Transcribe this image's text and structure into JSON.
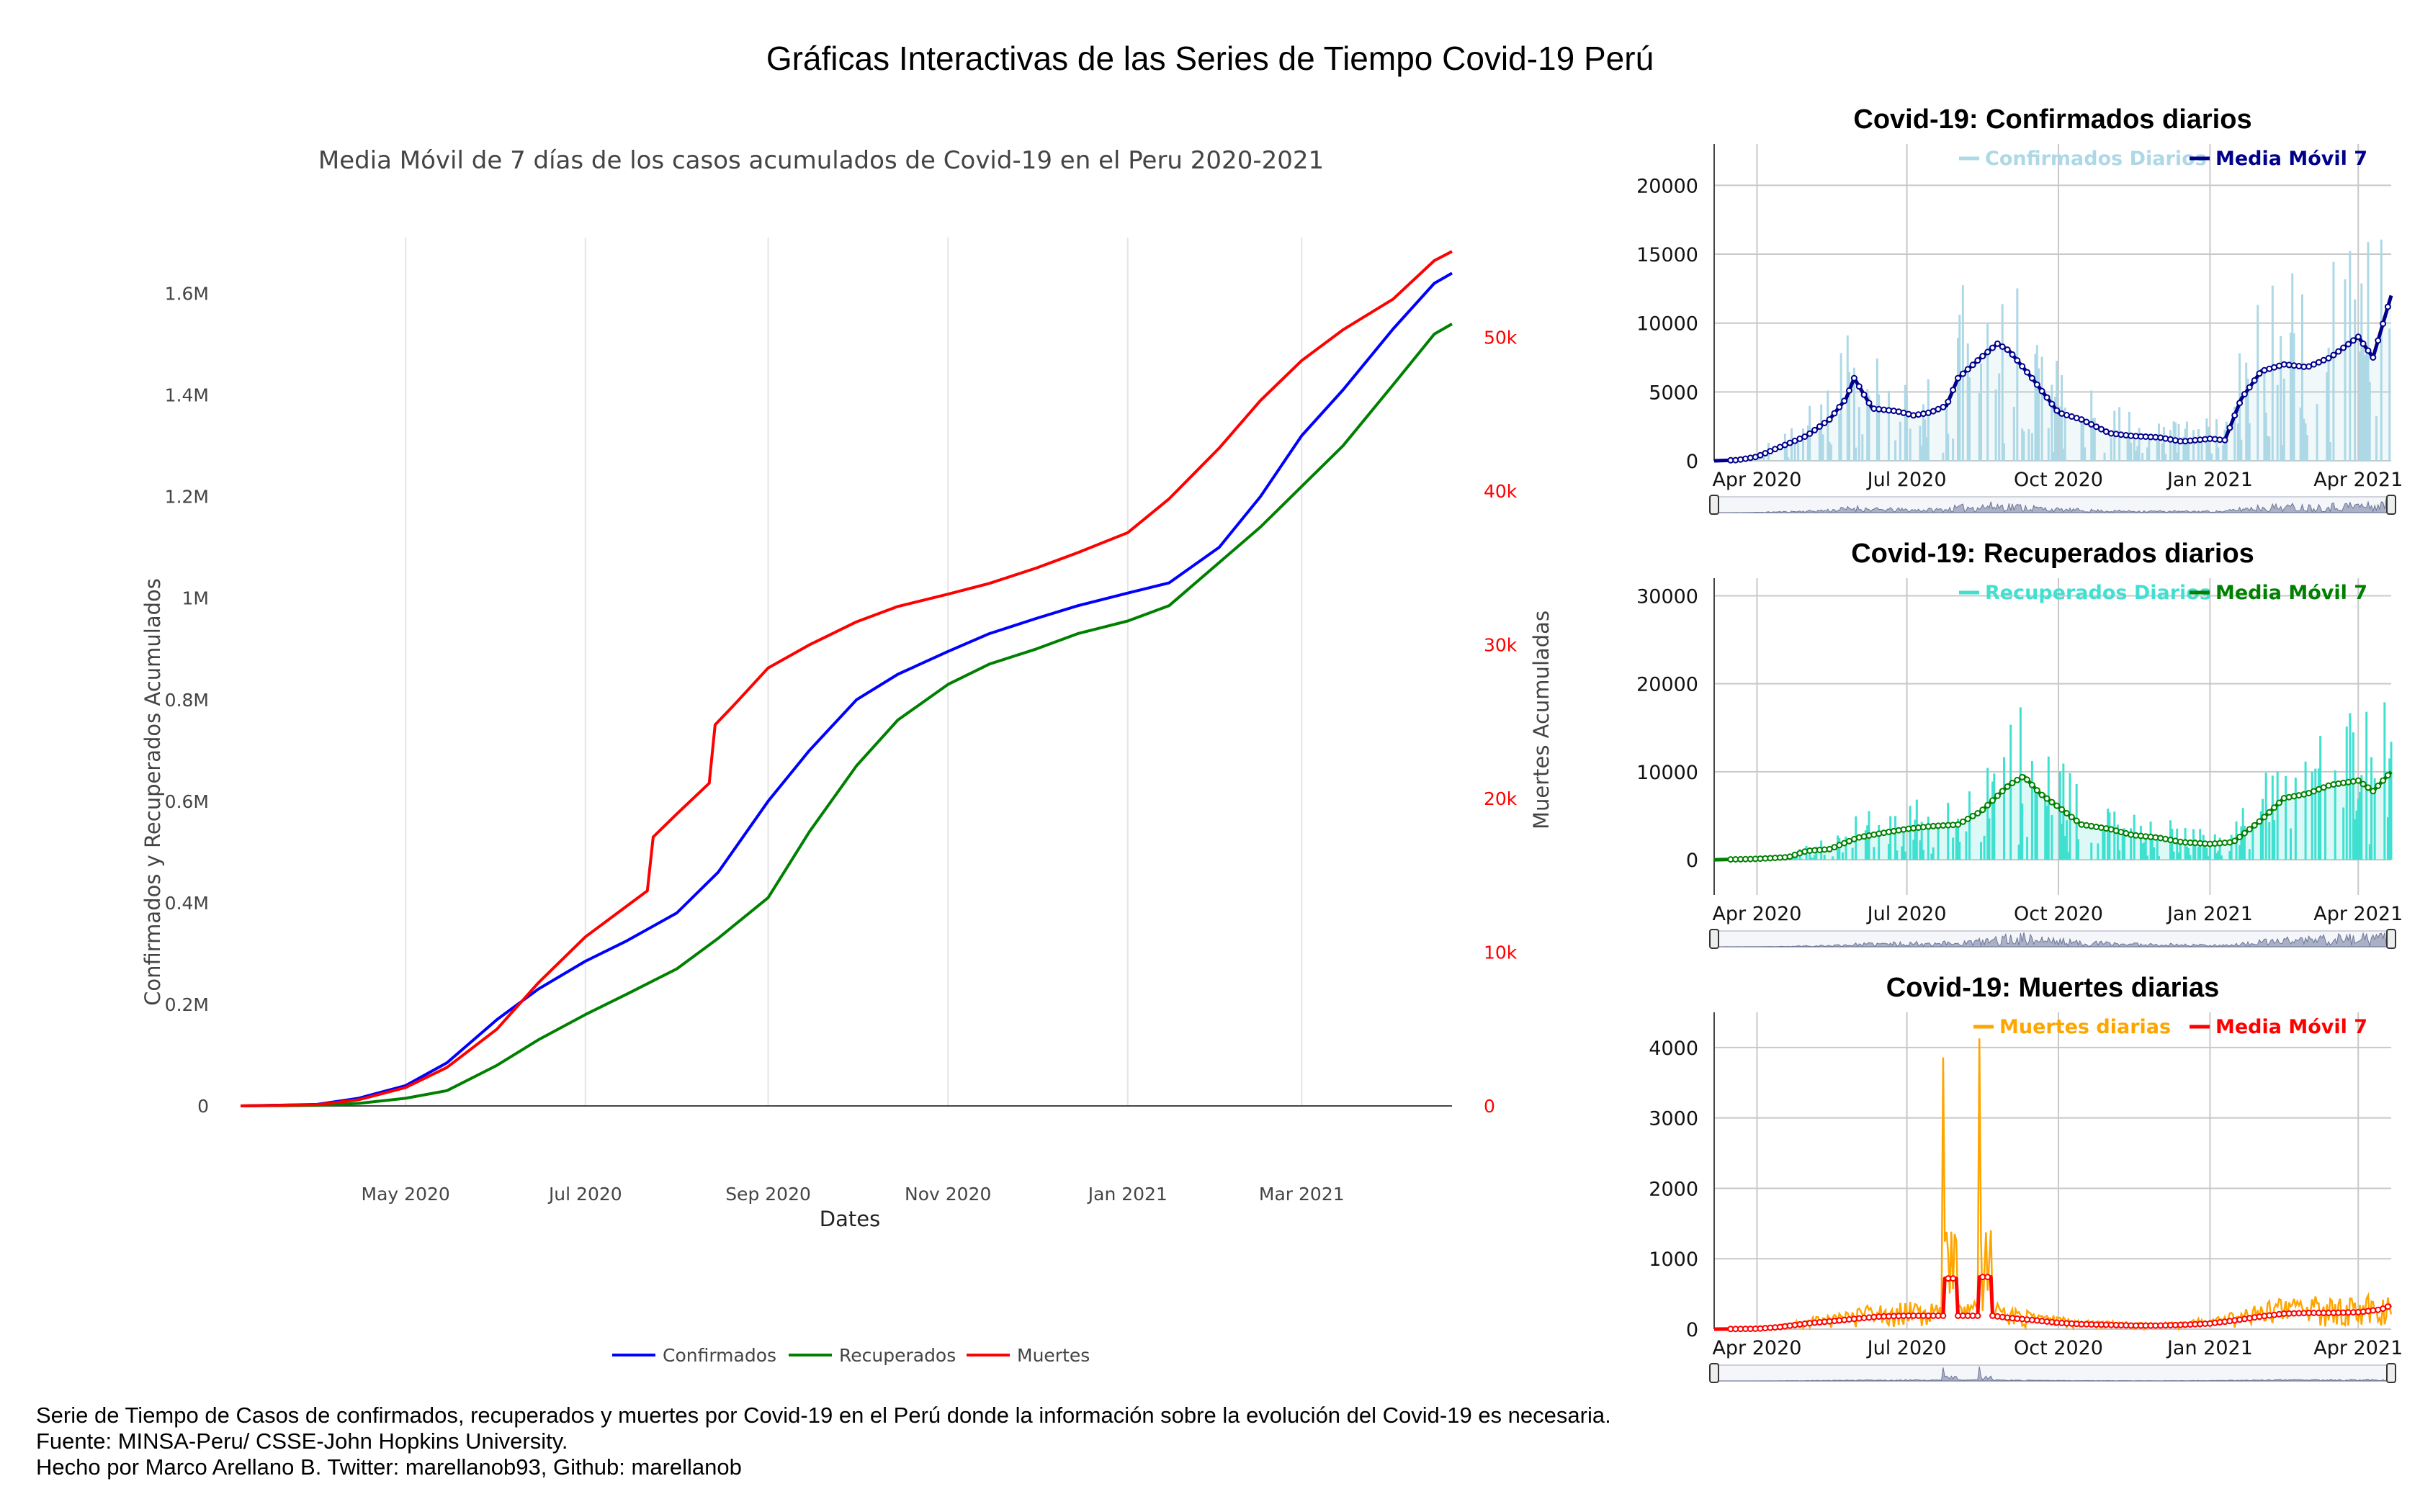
{
  "page": {
    "title": "Gráficas Interactivas de las Series de Tiempo Covid-19 Perú",
    "footer": [
      "Serie de Tiempo de Casos de confirmados, recuperados y muertes por Covid-19 en el Perú donde la información sobre la evolución del Covid-19 es necesaria.",
      "Fuente: MINSA-Peru/ CSSE-John Hopkins University.",
      "Hecho por Marco Arellano B. Twitter: marellanob93, Github: marellanob"
    ]
  },
  "colors": {
    "confirmados": "#0000ff",
    "recuperados": "#008000",
    "muertes": "#ff0000",
    "conf_daily": "#add8e6",
    "conf_ma": "#00008b",
    "rec_daily": "#40e0d0",
    "rec_ma": "#008000",
    "death_daily": "#ffa500",
    "death_ma": "#ff0000",
    "axis_text": "#444444",
    "grid": "#e5e5e5"
  },
  "chart_data": [
    {
      "type": "line",
      "title": "Media Móvil de 7 días de los casos acumulados de Covid-19 en el Peru 2020-2021",
      "xlabel": "Dates",
      "ylabel": "Confirmados y Recuperados Acumulados",
      "y2label": "Muertes Acumuladas",
      "xticks": [
        "May 2020",
        "Jul 2020",
        "Sep 2020",
        "Nov 2020",
        "Jan 2021",
        "Mar 2021"
      ],
      "yticks": [
        "0",
        "0.2M",
        "0.4M",
        "0.6M",
        "0.8M",
        "1M",
        "1.2M",
        "1.4M",
        "1.6M"
      ],
      "y2ticks": [
        "0",
        "10k",
        "20k",
        "30k",
        "40k",
        "50k"
      ],
      "ylim": [
        0,
        1710000
      ],
      "y2lim": [
        0,
        56500
      ],
      "grid": true,
      "legend_position": "bottom-center",
      "series": [
        {
          "name": "Confirmados",
          "axis": "left",
          "x": [
            "2020-03-06",
            "2020-04-01",
            "2020-04-15",
            "2020-05-01",
            "2020-05-15",
            "2020-06-01",
            "2020-06-15",
            "2020-07-01",
            "2020-07-15",
            "2020-08-01",
            "2020-08-15",
            "2020-09-01",
            "2020-09-15",
            "2020-10-01",
            "2020-10-15",
            "2020-11-01",
            "2020-11-15",
            "2020-12-01",
            "2020-12-15",
            "2021-01-01",
            "2021-01-15",
            "2021-02-01",
            "2021-02-15",
            "2021-03-01",
            "2021-03-15",
            "2021-04-01",
            "2021-04-15",
            "2021-04-21"
          ],
          "values": [
            0,
            3000,
            15000,
            40000,
            85000,
            170000,
            230000,
            285000,
            325000,
            380000,
            460000,
            600000,
            700000,
            800000,
            850000,
            895000,
            930000,
            960000,
            985000,
            1010000,
            1030000,
            1100000,
            1200000,
            1320000,
            1410000,
            1530000,
            1620000,
            1640000
          ]
        },
        {
          "name": "Recuperados",
          "axis": "left",
          "x": [
            "2020-03-06",
            "2020-04-01",
            "2020-04-15",
            "2020-05-01",
            "2020-05-15",
            "2020-06-01",
            "2020-06-15",
            "2020-07-01",
            "2020-07-15",
            "2020-08-01",
            "2020-08-15",
            "2020-09-01",
            "2020-09-15",
            "2020-10-01",
            "2020-10-15",
            "2020-11-01",
            "2020-11-15",
            "2020-12-01",
            "2020-12-15",
            "2021-01-01",
            "2021-01-15",
            "2021-02-01",
            "2021-02-15",
            "2021-03-01",
            "2021-03-15",
            "2021-04-01",
            "2021-04-15",
            "2021-04-21"
          ],
          "values": [
            0,
            1000,
            5000,
            15000,
            30000,
            80000,
            130000,
            180000,
            220000,
            270000,
            330000,
            410000,
            540000,
            670000,
            760000,
            830000,
            870000,
            900000,
            930000,
            955000,
            985000,
            1070000,
            1140000,
            1220000,
            1300000,
            1420000,
            1520000,
            1540000
          ]
        },
        {
          "name": "Muertes",
          "axis": "right",
          "x": [
            "2020-03-06",
            "2020-04-01",
            "2020-04-15",
            "2020-05-01",
            "2020-05-15",
            "2020-06-01",
            "2020-06-15",
            "2020-07-01",
            "2020-07-15",
            "2020-07-22",
            "2020-07-24",
            "2020-08-01",
            "2020-08-12",
            "2020-08-14",
            "2020-08-20",
            "2020-09-01",
            "2020-09-15",
            "2020-10-01",
            "2020-10-15",
            "2020-11-01",
            "2020-11-15",
            "2020-12-01",
            "2020-12-15",
            "2021-01-01",
            "2021-01-15",
            "2021-02-01",
            "2021-02-15",
            "2021-03-01",
            "2021-03-15",
            "2021-04-01",
            "2021-04-15",
            "2021-04-21"
          ],
          "values": [
            0,
            80,
            400,
            1200,
            2500,
            5000,
            8000,
            11000,
            13000,
            14000,
            17500,
            19000,
            21000,
            24800,
            26000,
            28500,
            30000,
            31500,
            32500,
            33300,
            34000,
            35000,
            36000,
            37300,
            39500,
            42800,
            45900,
            48500,
            50500,
            52500,
            55000,
            55600
          ]
        }
      ]
    },
    {
      "type": "bar",
      "title": "Covid-19: Confirmados diarios",
      "legend": [
        "Confirmados Diarios",
        "Media Móvil 7"
      ],
      "xticks": [
        "Apr 2020",
        "Jul 2020",
        "Oct 2020",
        "Jan 2021",
        "Apr 2021"
      ],
      "yticks": [
        "0",
        "5000",
        "10000",
        "15000",
        "20000"
      ],
      "ylim": [
        0,
        23000
      ],
      "series": [
        {
          "name": "Media Móvil 7",
          "x": [
            "2020-03-06",
            "2020-03-20",
            "2020-04-01",
            "2020-04-15",
            "2020-05-01",
            "2020-05-15",
            "2020-05-25",
            "2020-05-30",
            "2020-06-10",
            "2020-06-25",
            "2020-07-05",
            "2020-07-15",
            "2020-07-25",
            "2020-08-01",
            "2020-08-15",
            "2020-08-25",
            "2020-09-01",
            "2020-09-15",
            "2020-10-01",
            "2020-10-15",
            "2020-11-01",
            "2020-11-15",
            "2020-12-01",
            "2020-12-15",
            "2021-01-01",
            "2021-01-10",
            "2021-01-20",
            "2021-02-01",
            "2021-02-15",
            "2021-03-01",
            "2021-03-15",
            "2021-04-01",
            "2021-04-10",
            "2021-04-21"
          ],
          "values": [
            0,
            50,
            300,
            1000,
            1800,
            3000,
            4500,
            6000,
            3800,
            3600,
            3300,
            3500,
            4000,
            6000,
            7500,
            8500,
            8000,
            6000,
            3500,
            3000,
            2000,
            1800,
            1700,
            1400,
            1600,
            1500,
            4500,
            6500,
            7000,
            6800,
            7500,
            9000,
            7500,
            12000
          ]
        }
      ]
    },
    {
      "type": "bar",
      "title": "Covid-19: Recuperados diarios",
      "legend": [
        "Recuperados Diarios",
        "Media Móvil 7"
      ],
      "xticks": [
        "Apr 2020",
        "Jul 2020",
        "Oct 2020",
        "Jan 2021",
        "Apr 2021"
      ],
      "yticks": [
        "0",
        "10000",
        "20000",
        "30000"
      ],
      "ylim": [
        -4000,
        32000
      ],
      "series": [
        {
          "name": "Media Móvil 7",
          "x": [
            "2020-03-06",
            "2020-04-01",
            "2020-04-20",
            "2020-05-01",
            "2020-05-15",
            "2020-06-01",
            "2020-06-15",
            "2020-07-01",
            "2020-07-15",
            "2020-08-01",
            "2020-08-15",
            "2020-09-01",
            "2020-09-10",
            "2020-09-20",
            "2020-10-01",
            "2020-10-15",
            "2020-11-01",
            "2020-11-15",
            "2020-12-01",
            "2020-12-15",
            "2021-01-01",
            "2021-01-15",
            "2021-02-01",
            "2021-02-15",
            "2021-03-01",
            "2021-03-15",
            "2021-04-01",
            "2021-04-10",
            "2021-04-21"
          ],
          "values": [
            0,
            100,
            300,
            1000,
            1200,
            2500,
            3000,
            3500,
            3800,
            4000,
            5500,
            8500,
            9500,
            7500,
            6000,
            4000,
            3500,
            2800,
            2500,
            2000,
            1800,
            2000,
            4500,
            7000,
            7500,
            8500,
            9000,
            7800,
            10000
          ]
        }
      ]
    },
    {
      "type": "line",
      "title": "Covid-19: Muertes diarias",
      "legend": [
        "Muertes diarias",
        "Media Móvil 7"
      ],
      "xticks": [
        "Apr 2020",
        "Jul 2020",
        "Oct 2020",
        "Jan 2021",
        "Apr 2021"
      ],
      "yticks": [
        "0",
        "1000",
        "2000",
        "3000",
        "4000"
      ],
      "ylim": [
        0,
        4500
      ],
      "series": [
        {
          "name": "Media Móvil 7",
          "x": [
            "2020-03-06",
            "2020-04-01",
            "2020-04-15",
            "2020-05-01",
            "2020-05-15",
            "2020-06-01",
            "2020-06-15",
            "2020-07-01",
            "2020-07-15",
            "2020-07-23",
            "2020-07-24",
            "2020-07-31",
            "2020-08-01",
            "2020-08-13",
            "2020-08-14",
            "2020-08-21",
            "2020-08-22",
            "2020-09-01",
            "2020-09-15",
            "2020-10-01",
            "2020-10-15",
            "2020-11-01",
            "2020-11-15",
            "2020-12-01",
            "2020-12-15",
            "2021-01-01",
            "2021-01-15",
            "2021-02-01",
            "2021-02-15",
            "2021-03-01",
            "2021-03-15",
            "2021-04-01",
            "2021-04-15",
            "2021-04-21"
          ],
          "values": [
            0,
            5,
            30,
            80,
            110,
            150,
            180,
            190,
            190,
            190,
            720,
            720,
            190,
            190,
            740,
            740,
            190,
            160,
            130,
            90,
            70,
            60,
            50,
            50,
            60,
            80,
            120,
            180,
            220,
            230,
            230,
            240,
            280,
            340
          ]
        }
      ]
    }
  ]
}
